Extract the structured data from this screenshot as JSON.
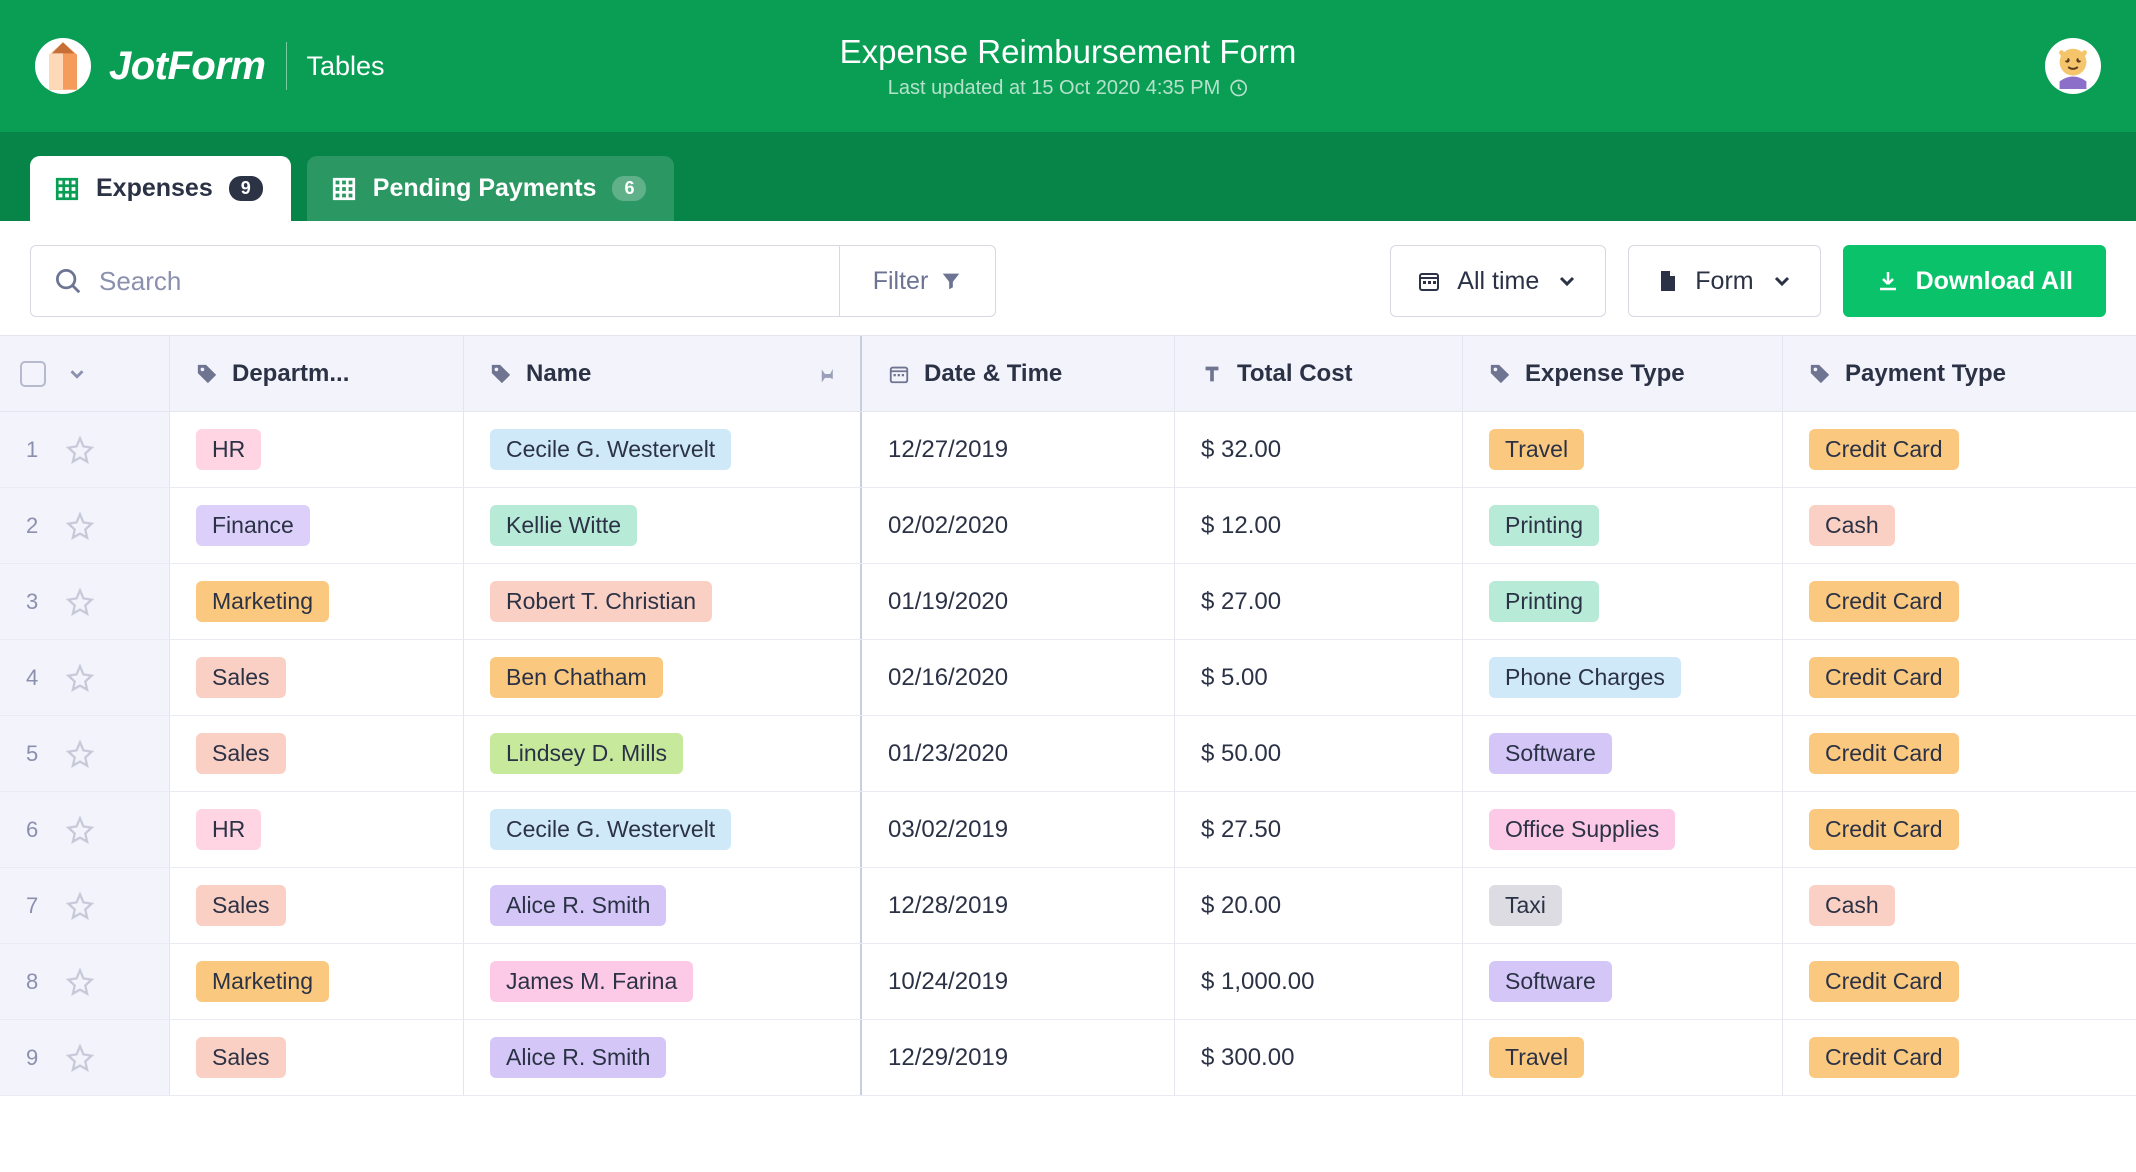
{
  "brand": {
    "name": "JotForm",
    "section": "Tables"
  },
  "header": {
    "title": "Expense Reimbursement Form",
    "subtitle": "Last updated at 15 Oct 2020 4:35 PM"
  },
  "tabs": [
    {
      "label": "Expenses",
      "count": "9",
      "active": true
    },
    {
      "label": "Pending Payments",
      "count": "6",
      "active": false
    }
  ],
  "toolbar": {
    "search_placeholder": "Search",
    "filter_label": "Filter",
    "time_label": "All time",
    "form_label": "Form",
    "download_label": "Download All"
  },
  "columns": {
    "dept": "Departm...",
    "name": "Name",
    "date": "Date & Time",
    "cost": "Total Cost",
    "type": "Expense Type",
    "pay": "Payment Type"
  },
  "tag_colors": {
    "HR": {
      "bg": "#ffd5e3",
      "fg": "#2b3245"
    },
    "Finance": {
      "bg": "#dcd0fb",
      "fg": "#2b3245"
    },
    "Marketing": {
      "bg": "#fbc87f",
      "fg": "#2b3245"
    },
    "Sales": {
      "bg": "#fbd0c4",
      "fg": "#2b3245"
    },
    "Cecile G. Westervelt": {
      "bg": "#cfe9f9",
      "fg": "#2b3245"
    },
    "Kellie Witte": {
      "bg": "#b8ead8",
      "fg": "#2b3245"
    },
    "Robert T. Christian": {
      "bg": "#fbd0c4",
      "fg": "#2b3245"
    },
    "Ben Chatham": {
      "bg": "#fbc87f",
      "fg": "#2b3245"
    },
    "Lindsey D. Mills": {
      "bg": "#c6e99c",
      "fg": "#2b3245"
    },
    "Alice R. Smith": {
      "bg": "#d4c7f7",
      "fg": "#2b3245"
    },
    "James M. Farina": {
      "bg": "#fcc9e6",
      "fg": "#2b3245"
    },
    "Travel": {
      "bg": "#fbc87f",
      "fg": "#2b3245"
    },
    "Printing": {
      "bg": "#b8ead8",
      "fg": "#2b3245"
    },
    "Phone Charges": {
      "bg": "#cfe9f9",
      "fg": "#2b3245"
    },
    "Software": {
      "bg": "#d4c7f7",
      "fg": "#2b3245"
    },
    "Office Supplies": {
      "bg": "#fcc9e6",
      "fg": "#2b3245"
    },
    "Taxi": {
      "bg": "#dcdce2",
      "fg": "#2b3245"
    },
    "Credit Card": {
      "bg": "#fbc87f",
      "fg": "#2b3245"
    },
    "Cash": {
      "bg": "#fbd0c4",
      "fg": "#2b3245"
    }
  },
  "rows": [
    {
      "n": "1",
      "dept": "HR",
      "name": "Cecile G. Westervelt",
      "date": "12/27/2019",
      "cost": "$ 32.00",
      "type": "Travel",
      "pay": "Credit Card"
    },
    {
      "n": "2",
      "dept": "Finance",
      "name": "Kellie Witte",
      "date": "02/02/2020",
      "cost": "$ 12.00",
      "type": "Printing",
      "pay": "Cash"
    },
    {
      "n": "3",
      "dept": "Marketing",
      "name": "Robert T. Christian",
      "date": "01/19/2020",
      "cost": "$ 27.00",
      "type": "Printing",
      "pay": "Credit Card"
    },
    {
      "n": "4",
      "dept": "Sales",
      "name": "Ben Chatham",
      "date": "02/16/2020",
      "cost": "$ 5.00",
      "type": "Phone Charges",
      "pay": "Credit Card"
    },
    {
      "n": "5",
      "dept": "Sales",
      "name": "Lindsey D. Mills",
      "date": "01/23/2020",
      "cost": "$ 50.00",
      "type": "Software",
      "pay": "Credit Card"
    },
    {
      "n": "6",
      "dept": "HR",
      "name": "Cecile G. Westervelt",
      "date": "03/02/2019",
      "cost": "$ 27.50",
      "type": "Office Supplies",
      "pay": "Credit Card"
    },
    {
      "n": "7",
      "dept": "Sales",
      "name": "Alice R. Smith",
      "date": "12/28/2019",
      "cost": "$ 20.00",
      "type": "Taxi",
      "pay": "Cash"
    },
    {
      "n": "8",
      "dept": "Marketing",
      "name": "James M. Farina",
      "date": "10/24/2019",
      "cost": "$ 1,000.00",
      "type": "Software",
      "pay": "Credit Card"
    },
    {
      "n": "9",
      "dept": "Sales",
      "name": "Alice R. Smith",
      "date": "12/29/2019",
      "cost": "$ 300.00",
      "type": "Travel",
      "pay": "Credit Card"
    }
  ]
}
